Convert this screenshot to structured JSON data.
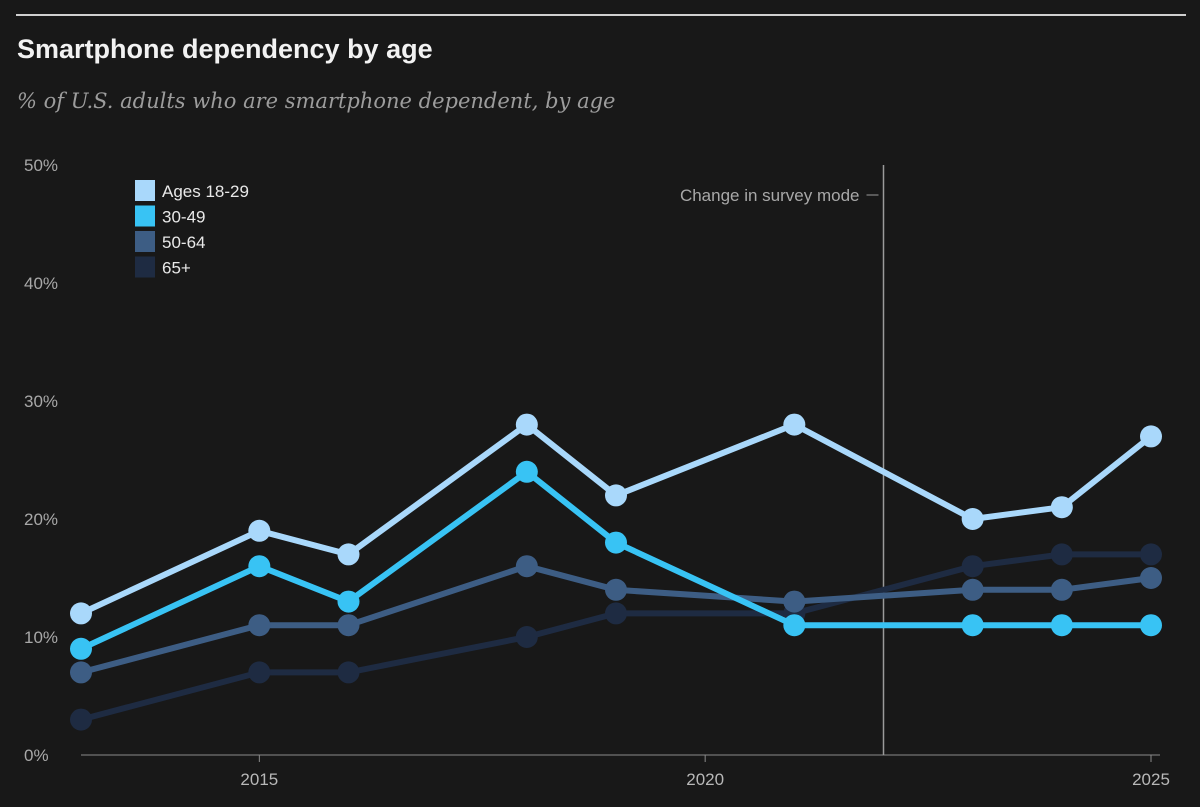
{
  "chart_data": {
    "type": "line",
    "title": "Smartphone dependency by age",
    "subtitle": "% of U.S. adults who are smartphone dependent, by age",
    "xlabel": "",
    "ylabel": "",
    "x": [
      2013,
      2015,
      2016,
      2018,
      2019,
      2021,
      2023,
      2024,
      2025
    ],
    "xlim": [
      2013,
      2025
    ],
    "ylim": [
      0,
      50
    ],
    "x_ticks": [
      {
        "value": 2015,
        "label": "2015"
      },
      {
        "value": 2020,
        "label": "2020"
      },
      {
        "value": 2025,
        "label": "2025"
      }
    ],
    "y_ticks": [
      {
        "value": 0,
        "label": "0%"
      },
      {
        "value": 10,
        "label": "10%"
      },
      {
        "value": 20,
        "label": "20%"
      },
      {
        "value": 30,
        "label": "30%"
      },
      {
        "value": 40,
        "label": "40%"
      },
      {
        "value": 50,
        "label": "50%"
      }
    ],
    "grid": false,
    "legend_position": "top-left",
    "annotation": {
      "text": "Change in survey mode",
      "x": 2022
    },
    "series": [
      {
        "name": "Ages 18-29",
        "color": "#a9d8fb",
        "values": [
          12,
          19,
          17,
          28,
          22,
          28,
          20,
          21,
          27
        ]
      },
      {
        "name": "30-49",
        "color": "#38c3f4",
        "values": [
          9,
          16,
          13,
          24,
          18,
          11,
          11,
          11,
          11
        ]
      },
      {
        "name": "50-64",
        "color": "#3d5d84",
        "values": [
          7,
          11,
          11,
          16,
          14,
          13,
          14,
          14,
          15
        ]
      },
      {
        "name": "65+",
        "color": "#1e2b42",
        "values": [
          3,
          7,
          7,
          10,
          12,
          12,
          16,
          17,
          17
        ]
      }
    ]
  }
}
